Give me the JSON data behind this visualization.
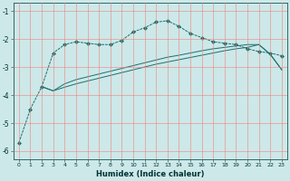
{
  "xlabel": "Humidex (Indice chaleur)",
  "bg_color": "#cde8e8",
  "grid_color": "#f08080",
  "line_color": "#1a7070",
  "ylim": [
    -6.3,
    -0.7
  ],
  "xlim": [
    -0.5,
    23.5
  ],
  "yticks": [
    -6,
    -5,
    -4,
    -3,
    -2,
    -1
  ],
  "xticks": [
    0,
    1,
    2,
    3,
    4,
    5,
    6,
    7,
    8,
    9,
    10,
    11,
    12,
    13,
    14,
    15,
    16,
    17,
    18,
    19,
    20,
    21,
    22,
    23
  ],
  "line1_x": [
    0,
    1,
    2,
    3,
    4,
    5,
    6,
    7,
    8,
    9,
    10,
    11,
    12,
    13,
    14,
    15,
    16,
    17,
    18,
    19,
    20,
    21,
    22,
    23
  ],
  "line1_y": [
    -5.7,
    -4.5,
    -3.7,
    -2.5,
    -2.2,
    -2.1,
    -2.15,
    -2.2,
    -2.2,
    -2.05,
    -1.75,
    -1.6,
    -1.4,
    -1.35,
    -1.55,
    -1.8,
    -1.95,
    -2.1,
    -2.15,
    -2.2,
    -2.35,
    -2.45,
    -2.5,
    -2.6
  ],
  "line2_x": [
    2,
    3,
    4,
    5,
    6,
    7,
    8,
    9,
    10,
    11,
    12,
    13,
    14,
    15,
    16,
    17,
    18,
    19,
    20,
    21,
    22,
    23
  ],
  "line2_y": [
    -3.7,
    -3.85,
    -3.6,
    -3.45,
    -3.35,
    -3.25,
    -3.15,
    -3.05,
    -2.95,
    -2.85,
    -2.75,
    -2.65,
    -2.58,
    -2.5,
    -2.42,
    -2.35,
    -2.3,
    -2.25,
    -2.2,
    -2.2,
    -2.55,
    -3.1
  ],
  "line3_x": [
    2,
    3,
    4,
    5,
    6,
    7,
    8,
    9,
    10,
    11,
    12,
    13,
    14,
    15,
    16,
    17,
    18,
    19,
    20,
    21,
    22,
    23
  ],
  "line3_y": [
    -3.7,
    -3.85,
    -3.72,
    -3.6,
    -3.5,
    -3.4,
    -3.3,
    -3.2,
    -3.1,
    -3.0,
    -2.9,
    -2.82,
    -2.74,
    -2.66,
    -2.58,
    -2.5,
    -2.42,
    -2.35,
    -2.3,
    -2.2,
    -2.55,
    -3.1
  ]
}
